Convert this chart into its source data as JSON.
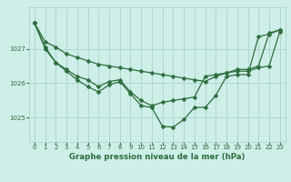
{
  "title": "Graphe pression niveau de la mer (hPa)",
  "background_color": "#ceeee8",
  "grid_color": "#aad4cc",
  "line_color": "#2d6e3e",
  "xlim": [
    -0.5,
    23.5
  ],
  "ylim": [
    1024.3,
    1028.2
  ],
  "yticks": [
    1025,
    1026,
    1027
  ],
  "xticks": [
    0,
    1,
    2,
    3,
    4,
    5,
    6,
    7,
    8,
    9,
    10,
    11,
    12,
    13,
    14,
    15,
    16,
    17,
    18,
    19,
    20,
    21,
    22,
    23
  ],
  "line1_x": [
    0,
    1,
    2,
    3,
    4,
    5,
    6,
    7,
    8,
    9,
    10,
    11,
    12,
    13,
    14,
    15,
    16,
    17,
    18,
    19,
    20,
    21,
    22,
    23
  ],
  "line1": [
    1027.75,
    1027.2,
    1027.05,
    1026.85,
    1026.75,
    1026.65,
    1026.55,
    1026.5,
    1026.45,
    1026.4,
    1026.35,
    1026.3,
    1026.25,
    1026.2,
    1026.15,
    1026.1,
    1026.05,
    1026.2,
    1026.3,
    1026.4,
    1026.4,
    1026.5,
    1027.45,
    1027.55
  ],
  "line2_x": [
    0,
    1,
    2,
    3,
    4,
    5,
    6,
    7,
    8,
    9,
    10,
    11,
    12,
    13,
    14,
    15,
    16,
    17,
    18,
    19,
    20,
    21,
    22,
    23
  ],
  "line2": [
    1027.75,
    1027.05,
    1026.6,
    1026.4,
    1026.2,
    1026.1,
    1025.9,
    1026.05,
    1026.1,
    1025.75,
    1025.5,
    1025.35,
    1025.45,
    1025.5,
    1025.55,
    1025.6,
    1026.2,
    1026.25,
    1026.3,
    1026.35,
    1026.35,
    1026.45,
    1026.5,
    1027.5
  ],
  "line3_x": [
    0,
    1,
    2,
    3,
    4,
    5,
    6,
    7,
    8,
    9,
    10,
    11,
    12,
    13,
    14,
    15,
    16,
    17,
    18,
    19,
    20,
    21,
    22,
    23
  ],
  "line3": [
    1027.75,
    1027.0,
    1026.6,
    1026.35,
    1026.1,
    1025.9,
    1025.75,
    1025.95,
    1026.05,
    1025.7,
    1025.35,
    1025.3,
    1024.75,
    1024.73,
    1024.95,
    1025.3,
    1025.3,
    1025.65,
    1026.2,
    1026.25,
    1026.25,
    1027.35,
    1027.42,
    1027.55
  ],
  "marker": "D",
  "markersize": 2.5,
  "linewidth": 0.9,
  "tick_fontsize": 5.0,
  "xlabel_fontsize": 6.2
}
